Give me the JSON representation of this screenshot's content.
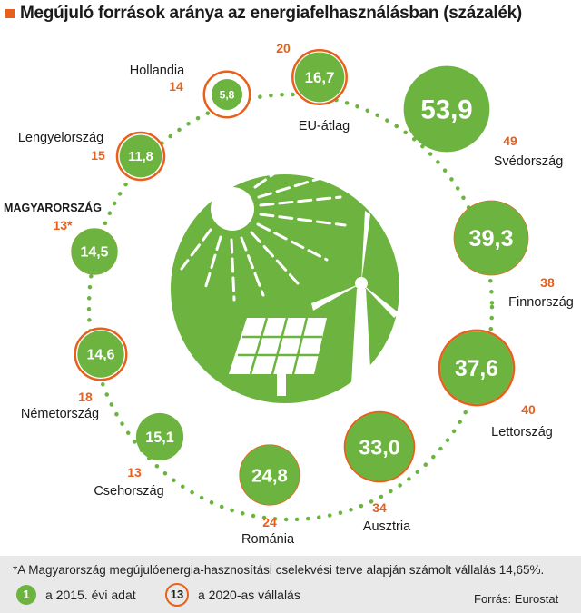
{
  "title": "Megújuló források aránya az energiafelhasználásban (százalék)",
  "colors": {
    "accent": "#e8601c",
    "green": "#6cb43f",
    "dot": "#6cb43f",
    "text": "#1a1a1a"
  },
  "footnote": "*A Magyarország megújulóenergia-hasznosítási cselekvési terve alapján számolt vállalás 14,65%.",
  "legend": {
    "value_sample": "1",
    "value_label": "a 2015. évi adat",
    "target_sample": "13",
    "target_label": "a 2020-as vállalás"
  },
  "source": "Forrás: Eurostat",
  "chart_data": {
    "type": "bubble-ring",
    "series": [
      {
        "name": "a 2015. évi adat"
      },
      {
        "name": "a 2020-as vállalás"
      }
    ],
    "items": [
      {
        "country": "EU-átlag",
        "value": 16.7,
        "value_label": "16,7",
        "target": 20,
        "target_label": "20",
        "bold": false
      },
      {
        "country": "Svédország",
        "value": 53.9,
        "value_label": "53,9",
        "target": 49,
        "target_label": "49",
        "bold": false
      },
      {
        "country": "Finnország",
        "value": 39.3,
        "value_label": "39,3",
        "target": 38,
        "target_label": "38",
        "bold": false
      },
      {
        "country": "Lettország",
        "value": 37.6,
        "value_label": "37,6",
        "target": 40,
        "target_label": "40",
        "bold": false
      },
      {
        "country": "Ausztria",
        "value": 33.0,
        "value_label": "33,0",
        "target": 34,
        "target_label": "34",
        "bold": false
      },
      {
        "country": "Románia",
        "value": 24.8,
        "value_label": "24,8",
        "target": 24,
        "target_label": "24",
        "bold": false
      },
      {
        "country": "Csehország",
        "value": 15.1,
        "value_label": "15,1",
        "target": 13,
        "target_label": "13",
        "bold": false
      },
      {
        "country": "Németország",
        "value": 14.6,
        "value_label": "14,6",
        "target": 18,
        "target_label": "18",
        "bold": false
      },
      {
        "country": "MAGYARORSZÁG",
        "value": 14.5,
        "value_label": "14,5",
        "target": 13,
        "target_label": "13*",
        "bold": true
      },
      {
        "country": "Lengyelország",
        "value": 11.8,
        "value_label": "11,8",
        "target": 15,
        "target_label": "15",
        "bold": false
      },
      {
        "country": "Hollandia",
        "value": 5.8,
        "value_label": "5,8",
        "target": 14,
        "target_label": "14",
        "bold": false
      }
    ]
  }
}
